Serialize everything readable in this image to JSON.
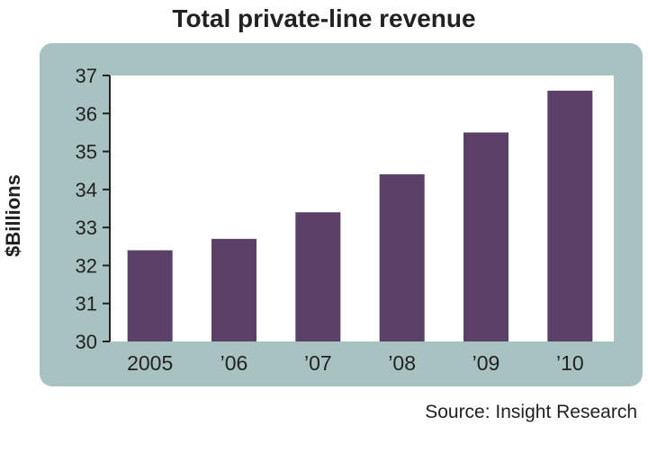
{
  "chart_data": {
    "type": "bar",
    "title": "Total private-line revenue",
    "xlabel": "",
    "ylabel": "$Billions",
    "categories": [
      "2005",
      "’06",
      "’07",
      "’08",
      "’09",
      "’10"
    ],
    "values": [
      32.4,
      32.7,
      33.4,
      34.4,
      35.5,
      36.6
    ],
    "ylim": [
      30,
      37
    ],
    "yticks": [
      "30",
      "31",
      "32",
      "33",
      "34",
      "35",
      "36",
      "37"
    ],
    "source": "Source: Insight Research",
    "grid": false
  },
  "colors": {
    "bar": "#5b4068",
    "panel": "#a8c2c2",
    "plot_background": "#ffffff",
    "text": "#222222"
  }
}
